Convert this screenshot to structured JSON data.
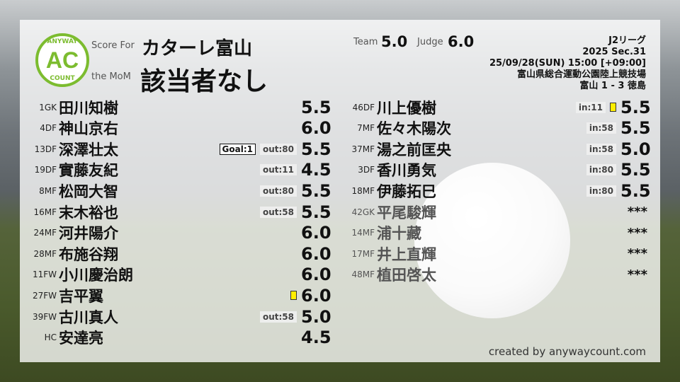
{
  "header": {
    "logo_text": "AC",
    "logo_top": "ANYWAY",
    "logo_bottom": "COUNT",
    "score_for_label": "Score For",
    "team_name": "カターレ富山",
    "mom_label": "the MoM",
    "mom_value": "該当者なし",
    "team_label": "Team",
    "team_score": "5.0",
    "judge_label": "Judge",
    "judge_score": "6.0"
  },
  "match": {
    "league": "J2リーグ",
    "section": "2025 Sec.31",
    "datetime": "25/09/28(SUN) 15:00 [+09:00]",
    "venue": "富山県総合運動公園陸上競技場",
    "result": "富山 1 - 3 徳島"
  },
  "colors": {
    "logo_green": "#7cbc2f",
    "yellow_card": "#ffee00"
  },
  "left_players": [
    {
      "num": "1GK",
      "name": "田川知樹",
      "score": "5.5"
    },
    {
      "num": "4DF",
      "name": "神山京右",
      "score": "6.0"
    },
    {
      "num": "13DF",
      "name": "深澤壮太",
      "goal": "Goal:1",
      "sub": "out:80",
      "score": "5.5"
    },
    {
      "num": "19DF",
      "name": "實藤友紀",
      "sub": "out:11",
      "score": "4.5"
    },
    {
      "num": "8MF",
      "name": "松岡大智",
      "sub": "out:80",
      "score": "5.5"
    },
    {
      "num": "16MF",
      "name": "末木裕也",
      "sub": "out:58",
      "score": "5.5"
    },
    {
      "num": "24MF",
      "name": "河井陽介",
      "score": "6.0"
    },
    {
      "num": "28MF",
      "name": "布施谷翔",
      "score": "6.0"
    },
    {
      "num": "11FW",
      "name": "小川慶治朗",
      "score": "6.0"
    },
    {
      "num": "27FW",
      "name": "吉平翼",
      "yellow": true,
      "score": "6.0"
    },
    {
      "num": "39FW",
      "name": "古川真人",
      "sub": "out:58",
      "score": "5.0"
    },
    {
      "num": "HC",
      "name": "安達亮",
      "score": "4.5"
    }
  ],
  "right_players": [
    {
      "num": "46DF",
      "name": "川上優樹",
      "sub": "in:11",
      "yellow": true,
      "score": "5.5"
    },
    {
      "num": "7MF",
      "name": "佐々木陽次",
      "sub": "in:58",
      "score": "5.5"
    },
    {
      "num": "37MF",
      "name": "湯之前匡央",
      "sub": "in:58",
      "score": "5.0"
    },
    {
      "num": "3DF",
      "name": "香川勇気",
      "sub": "in:80",
      "score": "5.5"
    },
    {
      "num": "18MF",
      "name": "伊藤拓巳",
      "sub": "in:80",
      "score": "5.5"
    },
    {
      "num": "42GK",
      "name": "平尾駿輝",
      "unused": true,
      "score": "***"
    },
    {
      "num": "14MF",
      "name": "浦十藏",
      "unused": true,
      "score": "***"
    },
    {
      "num": "17MF",
      "name": "井上直輝",
      "unused": true,
      "score": "***"
    },
    {
      "num": "48MF",
      "name": "植田啓太",
      "unused": true,
      "score": "***"
    }
  ],
  "footer": {
    "credit": "created by anywaycount.com"
  }
}
